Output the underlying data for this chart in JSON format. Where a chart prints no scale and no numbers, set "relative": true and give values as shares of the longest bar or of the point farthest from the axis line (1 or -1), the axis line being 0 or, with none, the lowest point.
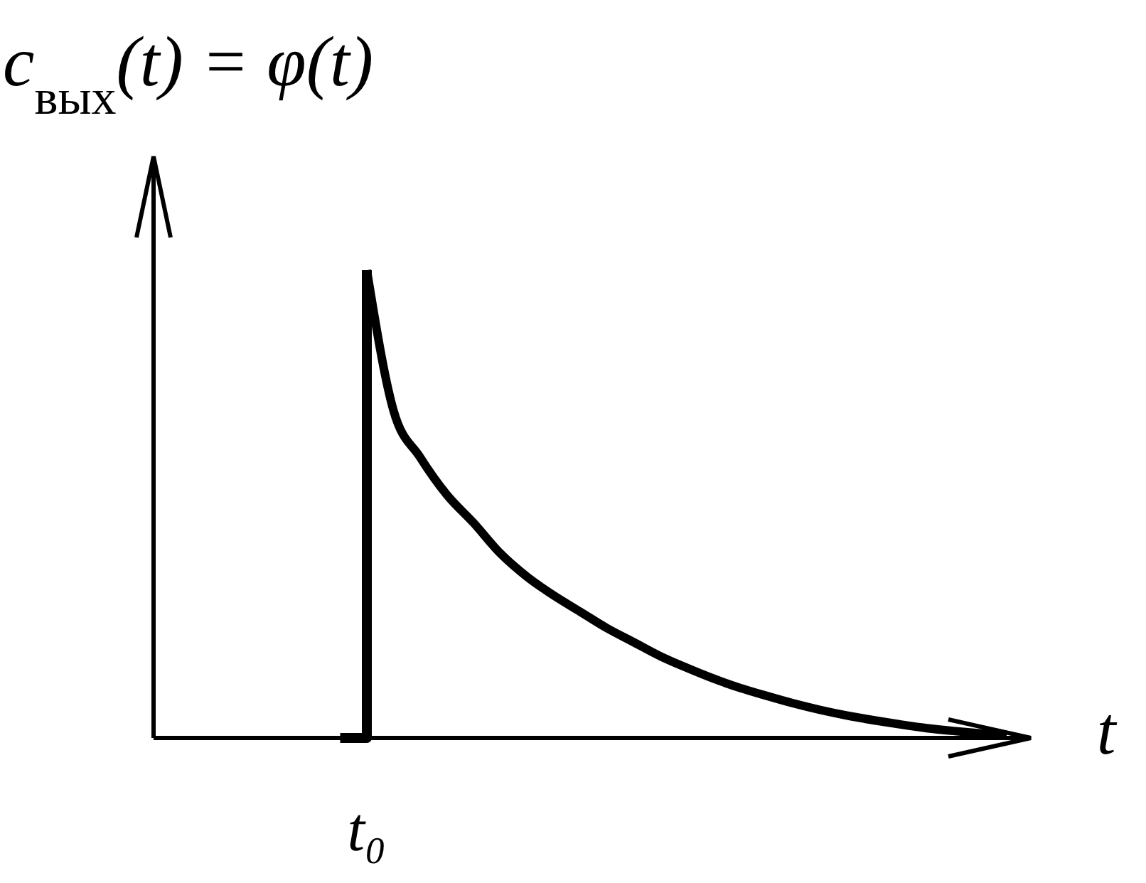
{
  "chart_data": {
    "type": "line",
    "relative": true,
    "ylabel": "c$_{вых}$(t) = φ(t)",
    "xlabel": "t",
    "categories": [
      null,
      null,
      null,
      null,
      null,
      null,
      null,
      null,
      null,
      null,
      null,
      null,
      null,
      null,
      null,
      null,
      null,
      null,
      null,
      null,
      null,
      null,
      null,
      null,
      null,
      null,
      null,
      null,
      null,
      null,
      null,
      null,
      null
    ],
    "annotations": [
      "t₀"
    ],
    "series": [
      {
        "type": "step",
        "color": "#000000",
        "values": [
          null,
          null,
          null,
          null,
          null,
          null,
          null,
          0,
          1,
          null,
          null,
          null,
          null,
          null,
          null,
          null,
          null,
          null,
          null,
          null,
          null,
          null,
          null,
          null,
          null,
          null,
          null,
          null,
          null,
          null,
          null,
          null,
          null
        ]
      },
      {
        "color": "#000000",
        "values": [
          null,
          null,
          null,
          null,
          null,
          null,
          null,
          null,
          1,
          0.7,
          0.6,
          0.52,
          0.46,
          0.395,
          0.345,
          0.305,
          0.27,
          0.235,
          0.205,
          0.175,
          0.15,
          0.127,
          0.107,
          0.09,
          0.074,
          0.06,
          0.048,
          0.038,
          0.029,
          0.021,
          0.015,
          0.01,
          0.006
        ]
      }
    ]
  }
}
